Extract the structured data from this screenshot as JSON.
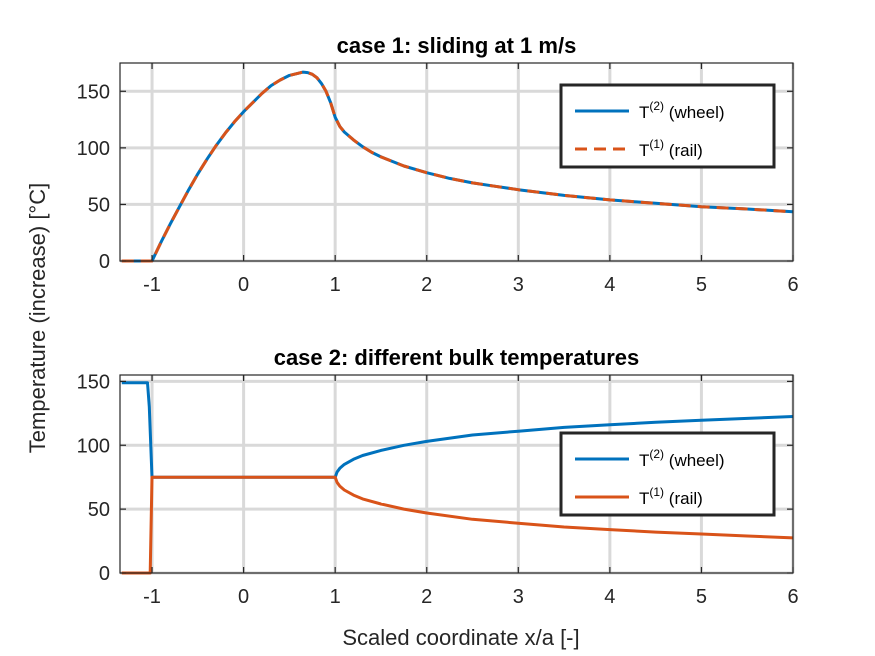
{
  "ylabel": "Temperature (increase) [°C]",
  "xlabel": "Scaled coordinate x/a [-]",
  "colors": {
    "wheel": "#0072BD",
    "rail": "#D95319",
    "grid": "#d9d9d9"
  },
  "chart_data": [
    {
      "type": "line",
      "title": "case 1: sliding at 1 m/s",
      "xlim": [
        -1.35,
        6
      ],
      "ylim": [
        0,
        175
      ],
      "xticks": [
        -1,
        0,
        1,
        2,
        3,
        4,
        5,
        6
      ],
      "yticks": [
        0,
        50,
        100,
        150
      ],
      "grid": true,
      "legend_position": "top-right",
      "series": [
        {
          "name": "T(2) (wheel)",
          "name_base": "T",
          "name_sup": "(2)",
          "name_rest": " (wheel)",
          "style": "solid",
          "x": [
            -1.33,
            -1.1,
            -1.0,
            -0.9,
            -0.8,
            -0.7,
            -0.6,
            -0.5,
            -0.4,
            -0.3,
            -0.2,
            -0.1,
            0.0,
            0.1,
            0.2,
            0.3,
            0.4,
            0.5,
            0.6,
            0.65,
            0.7,
            0.75,
            0.8,
            0.85,
            0.9,
            0.95,
            1.0,
            1.05,
            1.1,
            1.2,
            1.3,
            1.4,
            1.5,
            1.75,
            2.0,
            2.25,
            2.5,
            2.75,
            3.0,
            3.5,
            4.0,
            4.5,
            5.0,
            5.5,
            6.0
          ],
          "y": [
            0,
            0,
            0,
            17,
            33,
            48,
            63,
            77,
            90,
            102,
            113,
            123,
            132,
            140,
            148,
            155,
            160,
            164,
            166,
            167,
            166.5,
            165,
            162,
            157,
            150,
            140,
            127,
            119,
            114,
            107,
            101,
            96,
            92,
            84,
            78,
            73,
            69,
            66,
            63,
            58,
            54,
            51,
            48,
            46,
            43.5
          ]
        },
        {
          "name": "T(1) (rail)",
          "name_base": "T",
          "name_sup": "(1)",
          "name_rest": " (rail)",
          "style": "dashed",
          "x": [
            -1.33,
            -1.1,
            -1.0,
            -0.9,
            -0.8,
            -0.7,
            -0.6,
            -0.5,
            -0.4,
            -0.3,
            -0.2,
            -0.1,
            0.0,
            0.1,
            0.2,
            0.3,
            0.4,
            0.5,
            0.6,
            0.65,
            0.7,
            0.75,
            0.8,
            0.85,
            0.9,
            0.95,
            1.0,
            1.05,
            1.1,
            1.2,
            1.3,
            1.4,
            1.5,
            1.75,
            2.0,
            2.25,
            2.5,
            2.75,
            3.0,
            3.5,
            4.0,
            4.5,
            5.0,
            5.5,
            6.0
          ],
          "y": [
            0,
            0,
            0,
            17,
            33,
            48,
            63,
            77,
            90,
            102,
            113,
            123,
            132,
            140,
            148,
            155,
            160,
            164,
            166,
            167,
            166.5,
            165,
            162,
            157,
            150,
            140,
            127,
            119,
            114,
            107,
            101,
            96,
            92,
            84,
            78,
            73,
            69,
            66,
            63,
            58,
            54,
            51,
            48,
            46,
            43.5
          ]
        }
      ]
    },
    {
      "type": "line",
      "title": "case 2: different bulk temperatures",
      "xlim": [
        -1.35,
        6
      ],
      "ylim": [
        0,
        155
      ],
      "xticks": [
        -1,
        0,
        1,
        2,
        3,
        4,
        5,
        6
      ],
      "yticks": [
        0,
        50,
        100,
        150
      ],
      "grid": true,
      "legend_position": "right",
      "series": [
        {
          "name": "T(2) (wheel)",
          "name_base": "T",
          "name_sup": "(2)",
          "name_rest": " (wheel)",
          "style": "solid",
          "x": [
            -1.33,
            -1.05,
            -1.03,
            -1.0,
            -0.5,
            0.0,
            0.5,
            1.0,
            1.02,
            1.05,
            1.1,
            1.2,
            1.3,
            1.5,
            1.75,
            2.0,
            2.5,
            3.0,
            3.5,
            4.0,
            4.5,
            5.0,
            5.5,
            6.0
          ],
          "y": [
            149,
            149,
            130,
            75,
            75,
            75,
            75,
            75,
            79,
            82,
            85,
            89,
            92,
            96,
            100,
            103,
            108,
            111,
            114,
            116,
            118,
            119.5,
            121,
            122.5
          ]
        },
        {
          "name": "T(1) (rail)",
          "name_base": "T",
          "name_sup": "(1)",
          "name_rest": " (rail)",
          "style": "solid",
          "x": [
            -1.33,
            -1.02,
            -1.0,
            -0.5,
            0.0,
            0.5,
            1.0,
            1.02,
            1.05,
            1.1,
            1.2,
            1.3,
            1.5,
            1.75,
            2.0,
            2.5,
            3.0,
            3.5,
            4.0,
            4.5,
            5.0,
            5.5,
            6.0
          ],
          "y": [
            0,
            0,
            75,
            75,
            75,
            75,
            75,
            71,
            68,
            65,
            61,
            58,
            54,
            50,
            47,
            42,
            39,
            36,
            34,
            32,
            30.5,
            29,
            27.5
          ]
        }
      ]
    }
  ]
}
